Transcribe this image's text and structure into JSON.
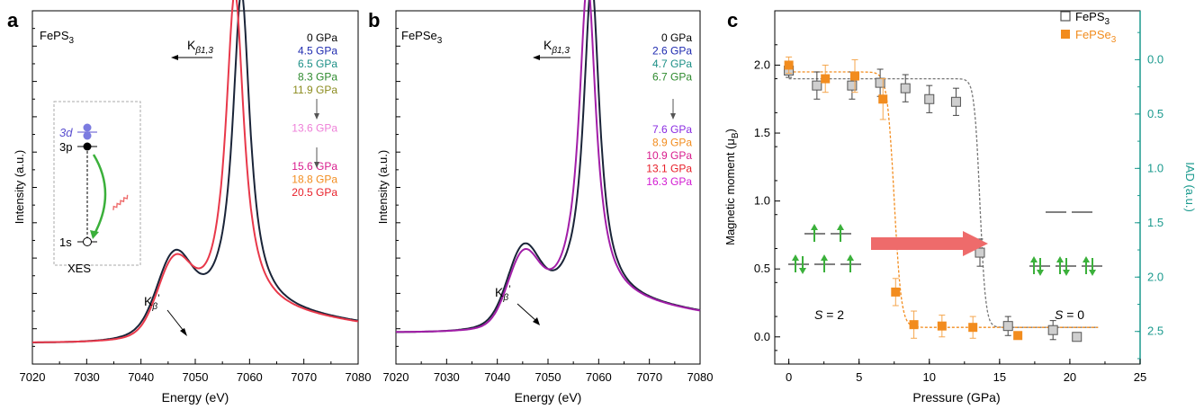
{
  "colors": {
    "fe_ps3": "#777777",
    "fe_pse3": "#f28c1e",
    "teal_axis": "#1b9a8e",
    "green_arrow": "#3bb03b",
    "red_arrow": "#ee6b6b",
    "dark_curve": "#1a2438"
  },
  "panel_letters": [
    "a",
    "b",
    "c"
  ],
  "annotations": {
    "kb13_main": "K",
    "kb13_sub": "β1,3",
    "kbprime_main": "K",
    "kbprime_sub": "β",
    "kbprime_mark": "’",
    "xes_label": "XES",
    "orb_3d": "3d",
    "orb_3p": "3p",
    "orb_1s": "1s",
    "s2": "= 2",
    "s0": "= 0",
    "s_symbol": "S"
  },
  "chart_data": [
    {
      "type": "line",
      "panel": "a",
      "sample_label": {
        "main": "FePS",
        "sub": "3"
      },
      "xlabel": "Energy (eV)",
      "ylabel": "Intensity (a.u.)",
      "xlim": [
        7020,
        7080
      ],
      "x_ticks": [
        "7020",
        "7030",
        "7040",
        "7050",
        "7060",
        "7070",
        "7080"
      ],
      "legend": [
        {
          "label": "0 GPa",
          "color": "#000000"
        },
        {
          "label": "4.5 GPa",
          "color": "#1f2bb0"
        },
        {
          "label": "6.5 GPa",
          "color": "#1b8f86"
        },
        {
          "label": "8.3 GPa",
          "color": "#2e8a2e"
        },
        {
          "label": "11.9 GPa",
          "color": "#8b8b1e"
        },
        {
          "label": "13.6 GPa",
          "color": "#ee7fd8"
        },
        {
          "label": "15.6 GPa",
          "color": "#d81b8c"
        },
        {
          "label": "18.8 GPa",
          "color": "#f28c1e"
        },
        {
          "label": "20.5 GPa",
          "color": "#e8202a"
        }
      ],
      "curves": [
        {
          "name": "0-8.3 GPa group",
          "peak_x": 7058.5,
          "shoulder_x": 7046,
          "color": "#1a2438"
        },
        {
          "name": "13.6-20.5 GPa group",
          "peak_x": 7057.3,
          "shoulder_x": 7046,
          "color": "#e8384a"
        }
      ]
    },
    {
      "type": "line",
      "panel": "b",
      "sample_label": {
        "main": "FePSe",
        "sub": "3"
      },
      "xlabel": "Energy (eV)",
      "ylabel": "Intensity (a.u.)",
      "xlim": [
        7020,
        7080
      ],
      "x_ticks": [
        "7020",
        "7030",
        "7040",
        "7050",
        "7060",
        "7070",
        "7080"
      ],
      "legend": [
        {
          "label": "0 GPa",
          "color": "#000000"
        },
        {
          "label": "2.6 GPa",
          "color": "#1f2bb0"
        },
        {
          "label": "4.7 GPa",
          "color": "#1b8f86"
        },
        {
          "label": "6.7 GPa",
          "color": "#2e8a2e"
        },
        {
          "label": "7.6 GPa",
          "color": "#8a2be2"
        },
        {
          "label": "8.9 GPa",
          "color": "#f28c1e"
        },
        {
          "label": "10.9 GPa",
          "color": "#d81b8c"
        },
        {
          "label": "13.1 GPa",
          "color": "#e8202a"
        },
        {
          "label": "16.3 GPa",
          "color": "#d21bd2"
        }
      ],
      "curves": [
        {
          "name": "0-6.7 GPa group",
          "peak_x": 7058.6,
          "shoulder_x": 7045,
          "color": "#1a2438"
        },
        {
          "name": "7.6-16.3 GPa group",
          "peak_x": 7057.8,
          "shoulder_x": 7045,
          "color": "#a21ea8"
        }
      ]
    },
    {
      "type": "scatter",
      "panel": "c",
      "xlabel": "Pressure (GPa)",
      "ylabel_main": "Magnetic moment (",
      "ylabel_unit": "μ",
      "ylabel_unit_sub": "B",
      "ylabel_close": ")",
      "y2label": "IAD (a.u.)",
      "xlim": [
        -1,
        25
      ],
      "ylim": [
        -0.2,
        2.4
      ],
      "y2lim": [
        2.8,
        -0.45
      ],
      "x_ticks": [
        "0",
        "5",
        "10",
        "15",
        "20",
        "25"
      ],
      "y_ticks": [
        "0.0",
        "0.5",
        "1.0",
        "1.5",
        "2.0"
      ],
      "y2_ticks": [
        "0.0",
        "0.5",
        "1.0",
        "1.5",
        "2.0",
        "2.5"
      ],
      "legend": [
        {
          "label_main": "FePS",
          "label_sub": "3",
          "color": "#777777",
          "marker": "open-square"
        },
        {
          "label_main": "FePSe",
          "label_sub": "3",
          "color": "#f28c1e",
          "marker": "filled-square"
        }
      ],
      "series": [
        {
          "name": "FePS3",
          "x": [
            0,
            2,
            4.5,
            6.5,
            8.3,
            10,
            11.9,
            13.6,
            15.6,
            18.8,
            20.5
          ],
          "y": [
            1.96,
            1.85,
            1.85,
            1.87,
            1.83,
            1.75,
            1.73,
            0.62,
            0.08,
            0.05,
            0.0
          ],
          "err": [
            0.05,
            0.1,
            0.1,
            0.1,
            0.1,
            0.1,
            0.1,
            0.1,
            0.07,
            0.07,
            0.02
          ]
        },
        {
          "name": "FePSe3",
          "x": [
            0,
            2.6,
            4.7,
            6.7,
            7.6,
            8.9,
            10.9,
            13.1,
            16.3
          ],
          "y": [
            2.0,
            1.9,
            1.92,
            1.75,
            0.33,
            0.09,
            0.08,
            0.07,
            0.01
          ],
          "err": [
            0.06,
            0.1,
            0.12,
            0.15,
            0.1,
            0.1,
            0.08,
            0.08,
            0.02
          ]
        }
      ],
      "fits": [
        {
          "name": "FePS3 fit",
          "high": 1.9,
          "low": 0.07,
          "center": 13.6,
          "width": 0.2
        },
        {
          "name": "FePSe3 fit",
          "high": 1.95,
          "low": 0.07,
          "center": 7.5,
          "width": 0.25
        }
      ]
    }
  ]
}
